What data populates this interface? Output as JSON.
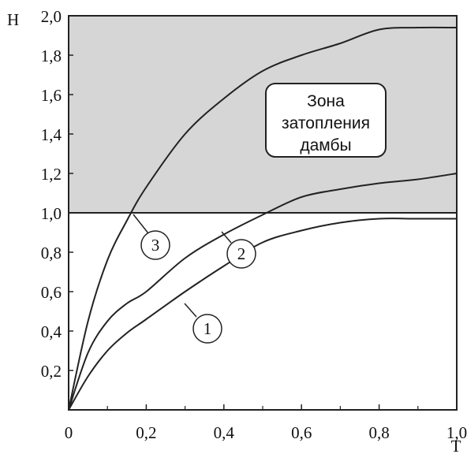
{
  "chart_data": {
    "type": "line",
    "xlabel": "T",
    "ylabel": "H",
    "xlim": [
      0,
      1.0
    ],
    "ylim": [
      0,
      2.0
    ],
    "x_ticks": [
      "0",
      "0,2",
      "0,4",
      "0,6",
      "0,8",
      "1,0"
    ],
    "y_ticks": [
      "0,2",
      "0,4",
      "0,6",
      "0,8",
      "1,0",
      "1,2",
      "1,4",
      "1,6",
      "1,8",
      "2,0"
    ],
    "threshold": 1.0,
    "zone": {
      "label_lines": [
        "Зона",
        "затопления",
        "дамбы"
      ],
      "from": 1.0,
      "to": 2.0,
      "color": "#d6d6d6"
    },
    "grid": false,
    "series": [
      {
        "name": "1",
        "x": [
          0,
          0.05,
          0.1,
          0.15,
          0.2,
          0.3,
          0.4,
          0.5,
          0.6,
          0.7,
          0.8,
          0.9,
          1.0
        ],
        "y": [
          0,
          0.17,
          0.3,
          0.39,
          0.46,
          0.6,
          0.73,
          0.85,
          0.91,
          0.95,
          0.97,
          0.97,
          0.97
        ]
      },
      {
        "name": "2",
        "x": [
          0,
          0.05,
          0.1,
          0.15,
          0.2,
          0.3,
          0.4,
          0.5,
          0.6,
          0.7,
          0.8,
          0.9,
          1.0
        ],
        "y": [
          0,
          0.29,
          0.45,
          0.54,
          0.6,
          0.77,
          0.89,
          0.99,
          1.08,
          1.12,
          1.15,
          1.17,
          1.2
        ]
      },
      {
        "name": "3",
        "x": [
          0,
          0.05,
          0.1,
          0.15,
          0.2,
          0.3,
          0.4,
          0.5,
          0.6,
          0.7,
          0.8,
          0.9,
          1.0
        ],
        "y": [
          0,
          0.45,
          0.76,
          0.96,
          1.13,
          1.4,
          1.58,
          1.72,
          1.8,
          1.86,
          1.93,
          1.94,
          1.94
        ]
      }
    ]
  }
}
